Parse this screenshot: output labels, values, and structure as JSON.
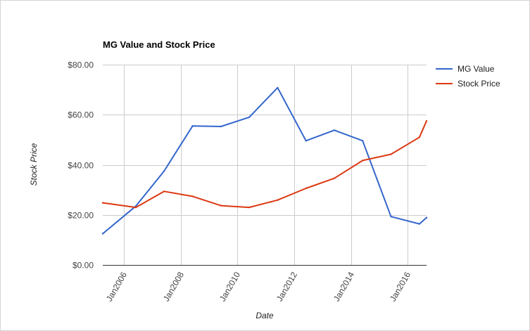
{
  "chart_data": {
    "type": "line",
    "title": "MG Value and Stock Price",
    "xlabel": "Date",
    "ylabel": "Stock Price",
    "xlim": [
      "2005-04-01",
      "2016-09-01"
    ],
    "ylim": [
      0,
      80
    ],
    "y_ticks": [
      {
        "value": 0,
        "label": "$0.00"
      },
      {
        "value": 20,
        "label": "$20.00"
      },
      {
        "value": 40,
        "label": "$40.00"
      },
      {
        "value": 60,
        "label": "$60.00"
      },
      {
        "value": 80,
        "label": "$80.00"
      }
    ],
    "x_ticks": [
      {
        "value": "2006-01-01",
        "label": "Jan2006"
      },
      {
        "value": "2008-01-01",
        "label": "Jan2008"
      },
      {
        "value": "2010-01-01",
        "label": "Jan2010"
      },
      {
        "value": "2012-01-01",
        "label": "Jan2012"
      },
      {
        "value": "2014-01-01",
        "label": "Jan2014"
      },
      {
        "value": "2016-01-01",
        "label": "Jan2016"
      }
    ],
    "grid": true,
    "legend_position": "right",
    "series": [
      {
        "name": "MG Value",
        "color": "#3366cc",
        "points": [
          {
            "x": "2005-04-01",
            "y": 12.5
          },
          {
            "x": "2006-06-01",
            "y": 23.5
          },
          {
            "x": "2007-06-01",
            "y": 37.5
          },
          {
            "x": "2008-06-01",
            "y": 55.5
          },
          {
            "x": "2009-06-01",
            "y": 55.3
          },
          {
            "x": "2010-06-01",
            "y": 59.0
          },
          {
            "x": "2011-06-01",
            "y": 70.8
          },
          {
            "x": "2012-06-01",
            "y": 49.6
          },
          {
            "x": "2013-06-01",
            "y": 53.8
          },
          {
            "x": "2014-06-01",
            "y": 49.6
          },
          {
            "x": "2015-06-01",
            "y": 19.3
          },
          {
            "x": "2016-06-01",
            "y": 16.4
          },
          {
            "x": "2016-09-01",
            "y": 18.9
          }
        ]
      },
      {
        "name": "Stock Price",
        "color": "#dc3912",
        "points": [
          {
            "x": "2005-04-01",
            "y": 24.8
          },
          {
            "x": "2006-06-01",
            "y": 23.0
          },
          {
            "x": "2007-06-01",
            "y": 29.4
          },
          {
            "x": "2008-06-01",
            "y": 27.4
          },
          {
            "x": "2009-06-01",
            "y": 23.7
          },
          {
            "x": "2010-06-01",
            "y": 23.0
          },
          {
            "x": "2011-06-01",
            "y": 25.9
          },
          {
            "x": "2012-06-01",
            "y": 30.6
          },
          {
            "x": "2013-06-01",
            "y": 34.6
          },
          {
            "x": "2014-06-01",
            "y": 41.7
          },
          {
            "x": "2015-06-01",
            "y": 44.2
          },
          {
            "x": "2016-06-01",
            "y": 51.0
          },
          {
            "x": "2016-09-01",
            "y": 57.5
          }
        ]
      }
    ]
  }
}
